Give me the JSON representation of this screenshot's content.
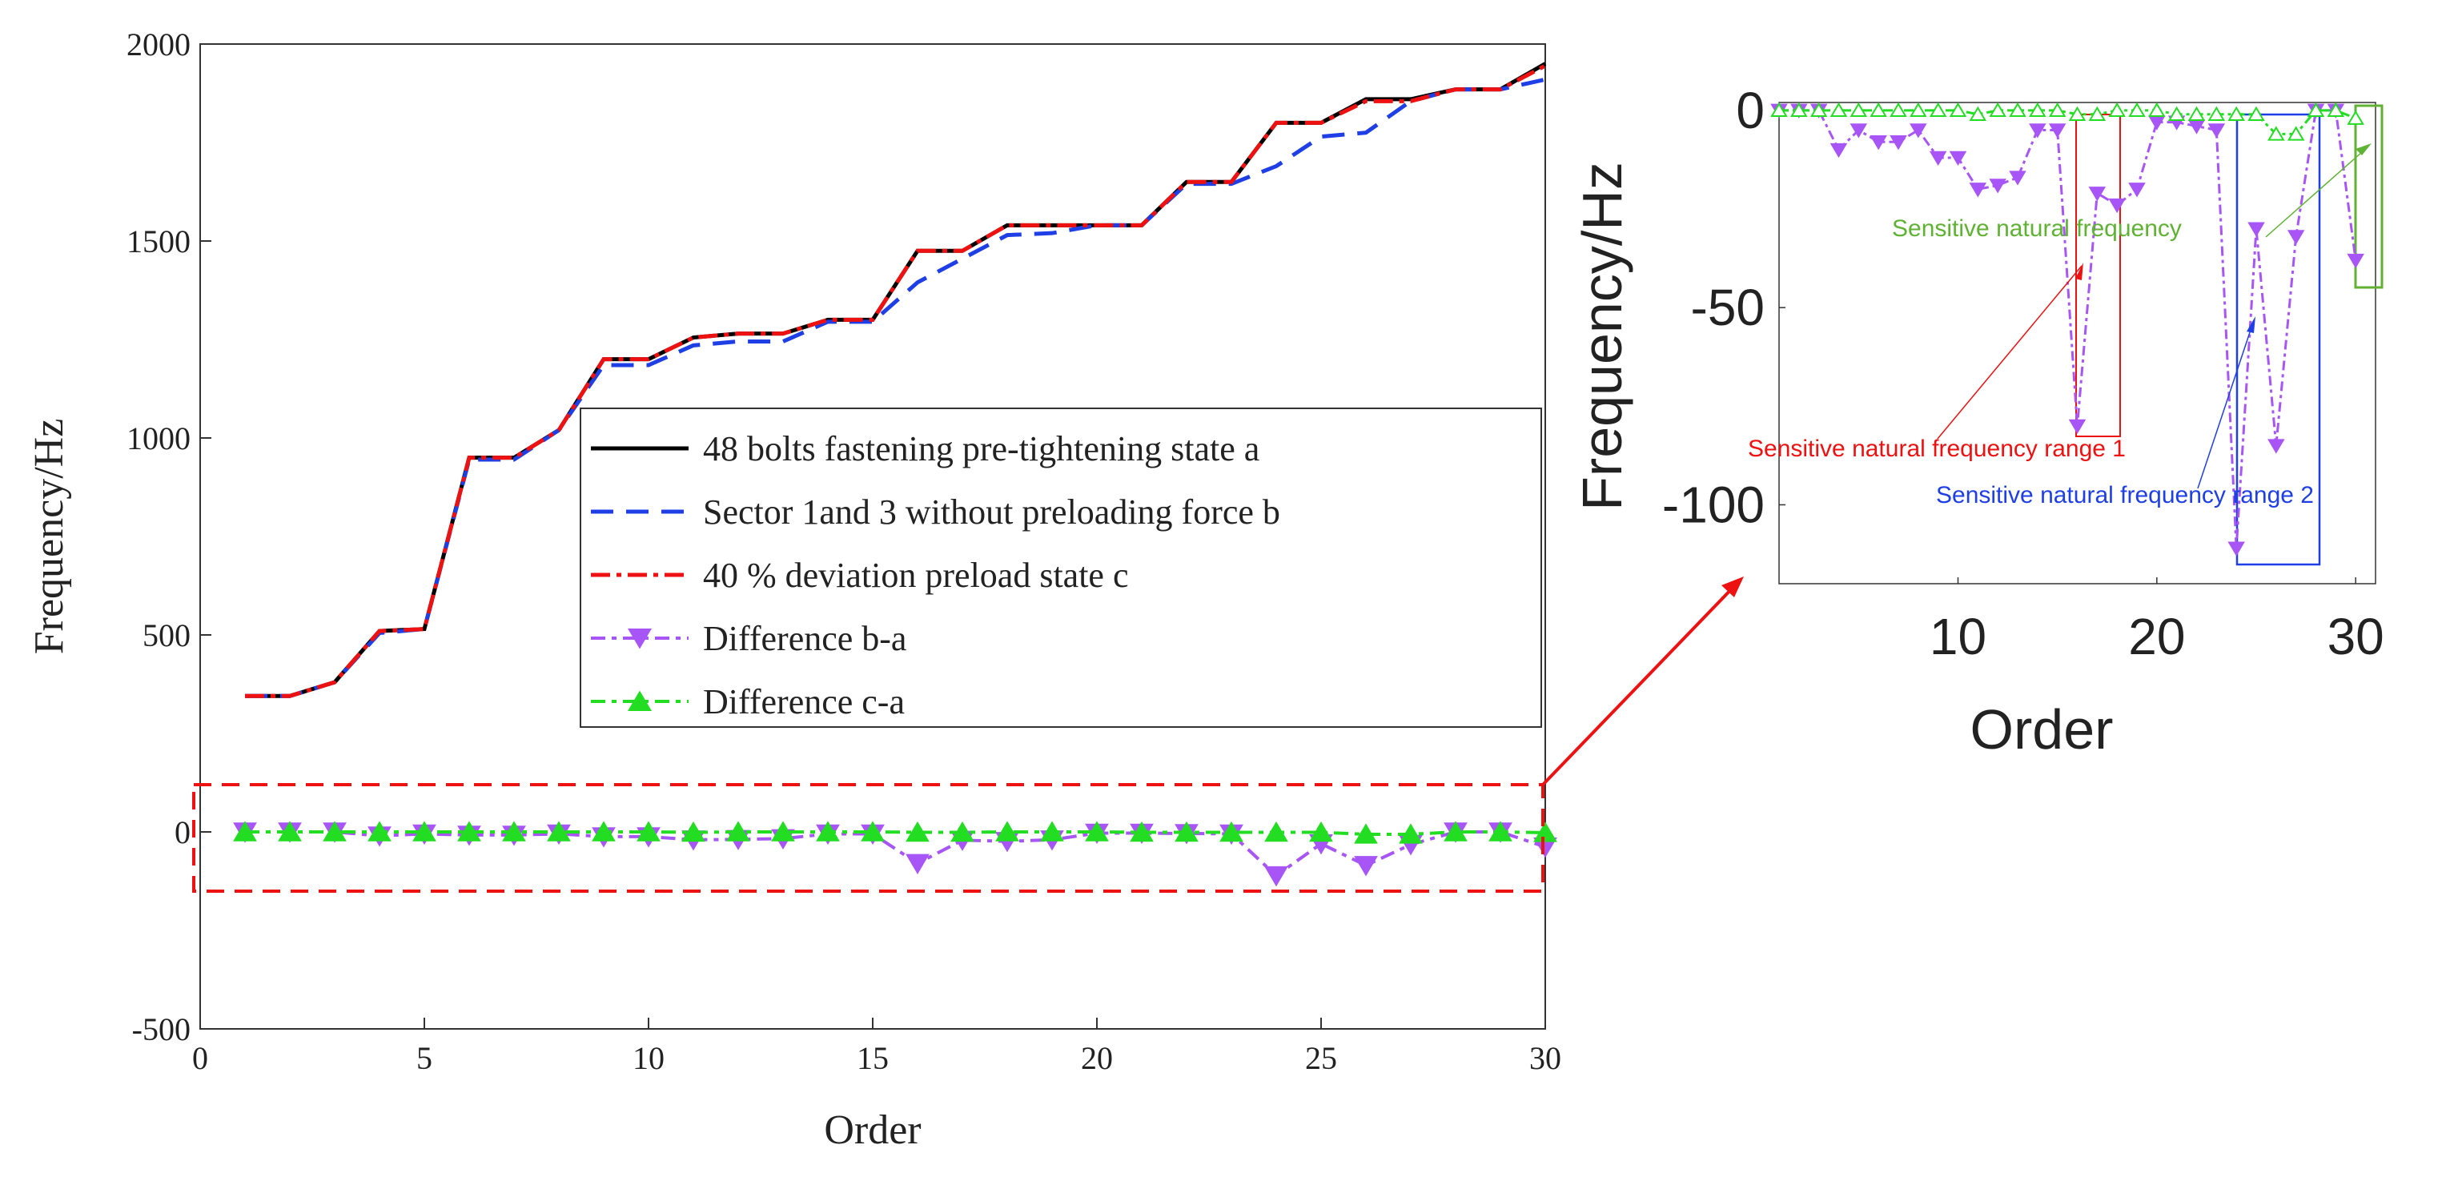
{
  "chart_data": [
    {
      "type": "line",
      "xlabel": "Order",
      "ylabel": "Frequency/Hz",
      "xlim": [
        0,
        30
      ],
      "ylim": [
        -500,
        2000
      ],
      "xticks": [
        "0",
        "5",
        "10",
        "15",
        "20",
        "25",
        "30"
      ],
      "yticks": [
        "2000",
        "1500",
        "1000",
        "500",
        "0",
        "-500"
      ],
      "x": [
        1,
        2,
        3,
        4,
        5,
        6,
        7,
        8,
        9,
        10,
        11,
        12,
        13,
        14,
        15,
        16,
        17,
        18,
        19,
        20,
        21,
        22,
        23,
        24,
        25,
        26,
        27,
        28,
        29,
        30
      ],
      "series": [
        {
          "name": "48 bolts fastening pre-tightening state a",
          "color": "#000000",
          "values": [
            345,
            345,
            380,
            510,
            515,
            950,
            950,
            1020,
            1200,
            1200,
            1255,
            1265,
            1265,
            1300,
            1300,
            1475,
            1475,
            1540,
            1540,
            1540,
            1540,
            1650,
            1650,
            1800,
            1800,
            1860,
            1860,
            1885,
            1885,
            1950
          ]
        },
        {
          "name": "Sector 1and 3 without preloading force  b",
          "color": "#1f3fe6",
          "values": [
            345,
            345,
            380,
            505,
            515,
            945,
            945,
            1020,
            1185,
            1185,
            1235,
            1245,
            1245,
            1295,
            1295,
            1395,
            1455,
            1515,
            1520,
            1540,
            1540,
            1645,
            1645,
            1690,
            1765,
            1775,
            1855,
            1885,
            1885,
            1910
          ]
        },
        {
          "name": "40 % deviation preload state c",
          "color": "#ee1111",
          "values": [
            345,
            345,
            380,
            510,
            515,
            950,
            950,
            1020,
            1200,
            1200,
            1255,
            1265,
            1265,
            1300,
            1300,
            1475,
            1475,
            1540,
            1540,
            1540,
            1540,
            1650,
            1650,
            1800,
            1800,
            1855,
            1855,
            1885,
            1885,
            1945
          ]
        },
        {
          "name": "Difference b-a",
          "color": "#a855f7",
          "values": [
            0,
            0,
            0,
            -10,
            -5,
            -8,
            -8,
            -5,
            -12,
            -12,
            -20,
            -19,
            -17,
            -5,
            -5,
            -80,
            -21,
            -24,
            -20,
            -3,
            -3,
            -4,
            -5,
            -111,
            -30,
            -85,
            -32,
            0,
            0,
            -38
          ]
        },
        {
          "name": "Difference c-a",
          "color": "#22dd22",
          "values": [
            0,
            0,
            0,
            0,
            0,
            0,
            0,
            0,
            0,
            0,
            -1,
            0,
            0,
            0,
            0,
            -1,
            -1,
            0,
            0,
            0,
            -1,
            -1,
            -1,
            -1,
            -1,
            -6,
            -6,
            0,
            0,
            -2
          ]
        }
      ]
    },
    {
      "type": "line",
      "xlabel": "Order",
      "ylabel": "Frequency/Hz",
      "xlim": [
        1,
        31
      ],
      "ylim": [
        -120,
        2
      ],
      "xticks": [
        "10",
        "20",
        "30"
      ],
      "yticks": [
        "0",
        "-50",
        "-100"
      ],
      "annotations": [
        "Sensitive natural frequency",
        "Sensitive natural frequency range 1",
        "Sensitive natural frequency range 2"
      ],
      "series_ref": [
        "Difference b-a",
        "Difference c-a"
      ]
    }
  ],
  "colors": {
    "state_a": "#000000",
    "state_b": "#1f3fe6",
    "state_c": "#ee1111",
    "diff_ba": "#a855f7",
    "diff_ca": "#22dd22",
    "highlight": "#ee1111",
    "range2": "#1f3fe6",
    "sensitive": "#5fb233"
  }
}
